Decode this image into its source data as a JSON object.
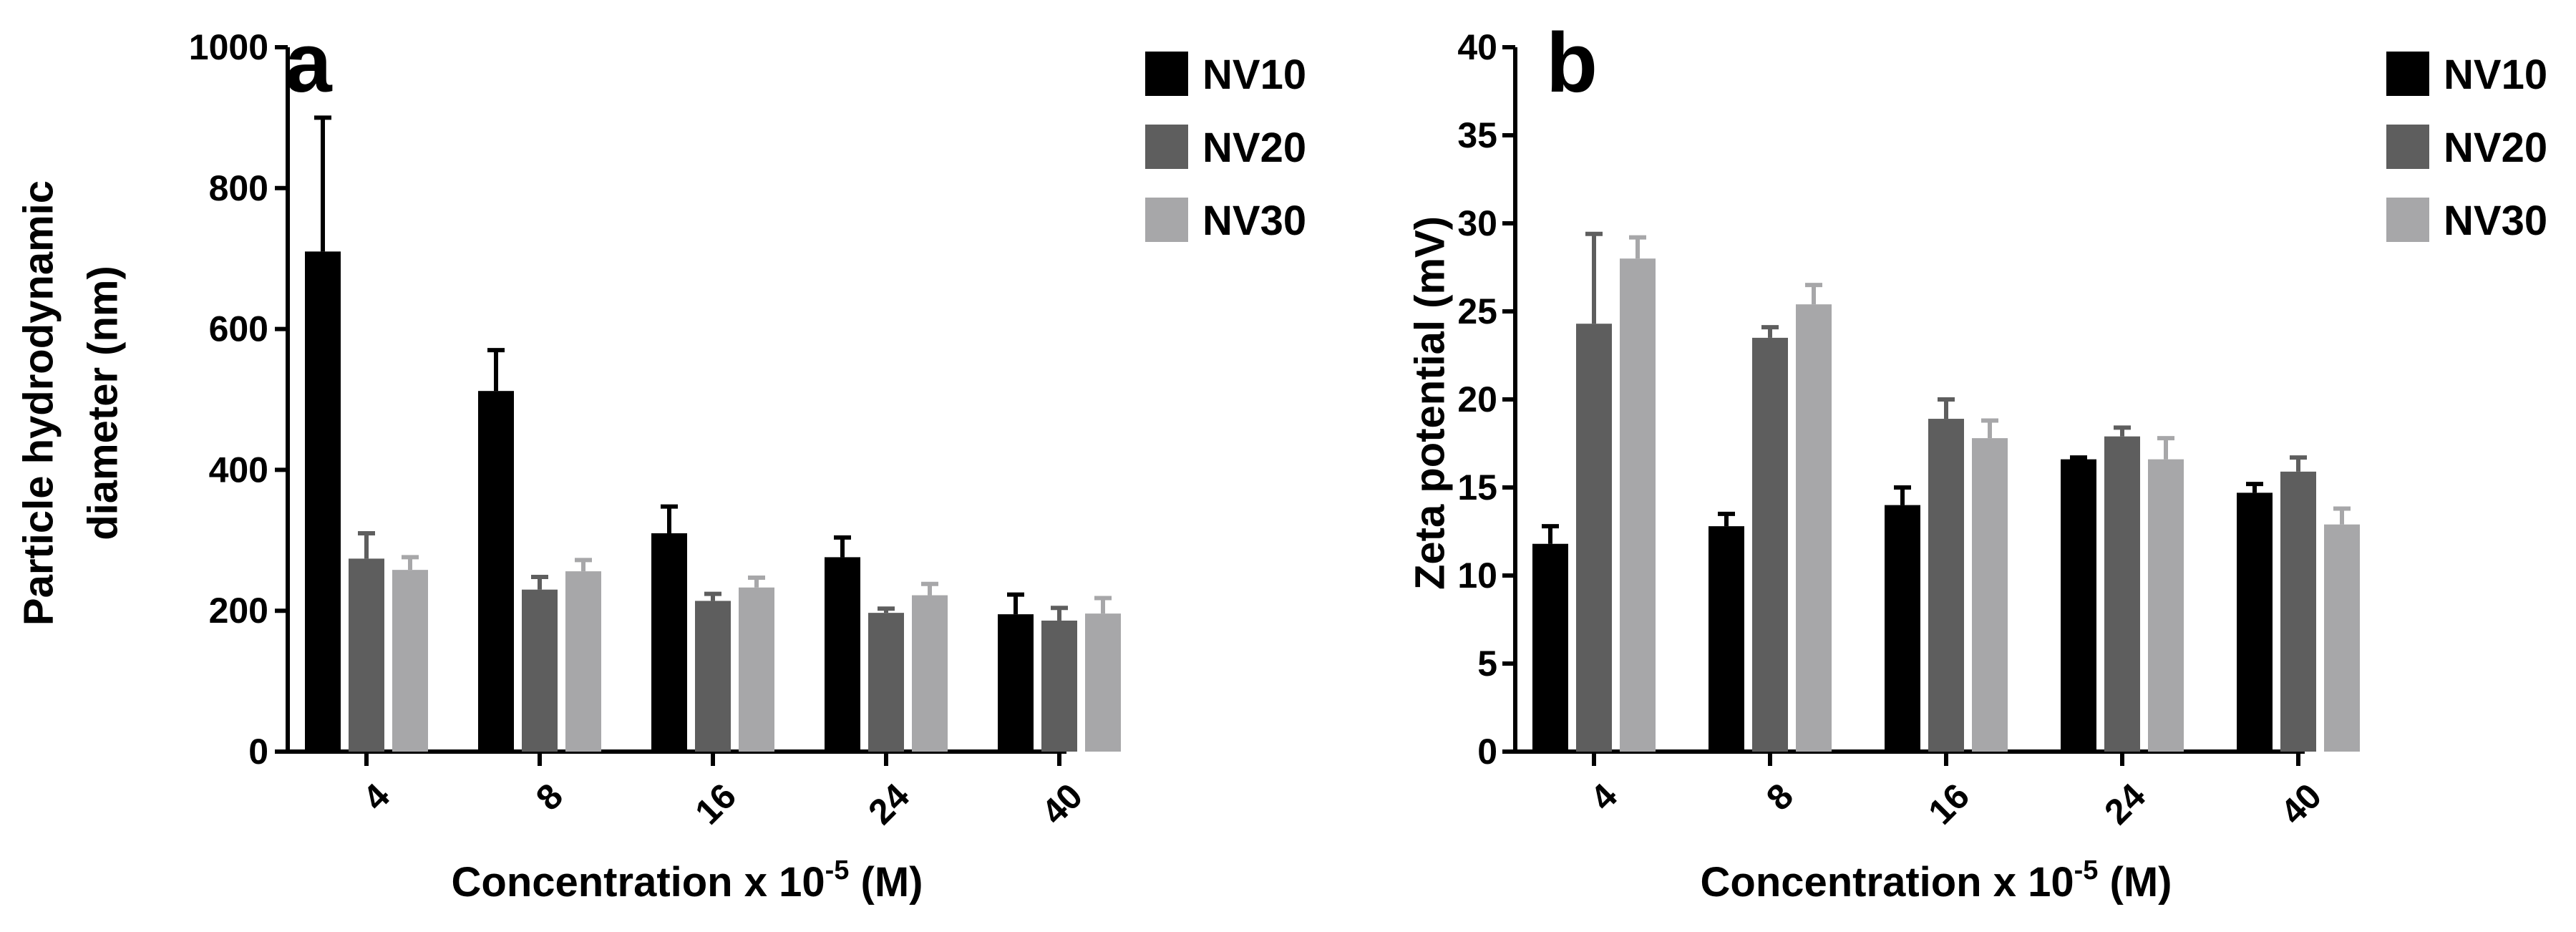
{
  "colors": {
    "NV10": "#000000",
    "NV20": "#5e5e5e",
    "NV30": "#a7a7a9",
    "axis": "#000000"
  },
  "chart_data": [
    {
      "type": "bar",
      "panel_label": "a",
      "title": "",
      "xlabel_main": "Concentration x 10",
      "xlabel_sup": "-5",
      "xlabel_unit": " (M)",
      "ylabel_lines": [
        "Particle hydrodynamic",
        "diameter (nm)"
      ],
      "ylim": [
        0,
        1000
      ],
      "yticks": [
        0,
        200,
        400,
        600,
        800,
        1000
      ],
      "categories": [
        "4",
        "8",
        "16",
        "24",
        "40"
      ],
      "series": [
        {
          "name": "NV10",
          "color_key": "NV10",
          "values": [
            710,
            512,
            310,
            276,
            195
          ],
          "errors": [
            190,
            58,
            38,
            28,
            28
          ]
        },
        {
          "name": "NV20",
          "color_key": "NV20",
          "values": [
            274,
            230,
            214,
            197,
            186
          ],
          "errors": [
            36,
            18,
            10,
            6,
            18
          ]
        },
        {
          "name": "NV30",
          "color_key": "NV30",
          "values": [
            258,
            256,
            233,
            222,
            196
          ],
          "errors": [
            18,
            16,
            14,
            16,
            22
          ]
        }
      ],
      "legend": [
        "NV10",
        "NV20",
        "NV30"
      ],
      "legend_position": "top-right"
    },
    {
      "type": "bar",
      "panel_label": "b",
      "title": "",
      "xlabel_main": "Concentration x 10",
      "xlabel_sup": "-5",
      "xlabel_unit": " (M)",
      "ylabel_lines": [
        "Zeta potential (mV)"
      ],
      "ylim": [
        0,
        40
      ],
      "yticks": [
        0,
        5,
        10,
        15,
        20,
        25,
        30,
        35,
        40
      ],
      "categories": [
        "4",
        "8",
        "16",
        "24",
        "40"
      ],
      "series": [
        {
          "name": "NV10",
          "color_key": "NV10",
          "values": [
            11.8,
            12.8,
            14.0,
            16.6,
            14.7
          ],
          "errors": [
            1.0,
            0.7,
            1.0,
            0.1,
            0.5
          ]
        },
        {
          "name": "NV20",
          "color_key": "NV20",
          "values": [
            24.3,
            23.5,
            18.9,
            17.9,
            15.9
          ],
          "errors": [
            5.1,
            0.6,
            1.1,
            0.5,
            0.8
          ]
        },
        {
          "name": "NV30",
          "color_key": "NV30",
          "values": [
            28.0,
            25.4,
            17.8,
            16.6,
            12.9
          ],
          "errors": [
            1.2,
            1.1,
            1.0,
            1.2,
            0.9
          ]
        }
      ],
      "legend": [
        "NV10",
        "NV20",
        "NV30"
      ],
      "legend_position": "top-right"
    }
  ]
}
